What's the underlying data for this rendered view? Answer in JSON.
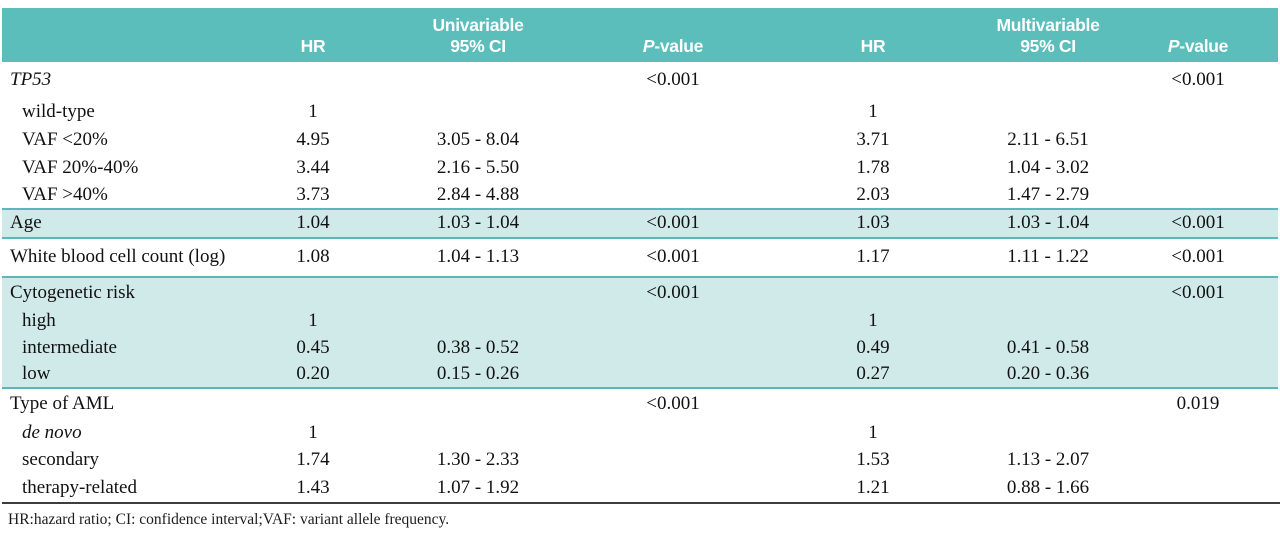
{
  "colors": {
    "header_teal": "#5bbeba",
    "row_shade": "#cfeae9",
    "separator_teal": "#57bab6",
    "bottom_rule": "#3d3d3d"
  },
  "table": {
    "header": {
      "group_univariable": "Univariable",
      "group_multivariable": "Multivariable",
      "col_hr": "HR",
      "col_ci": "95% CI",
      "col_p_italic": "P",
      "col_p_rest": "-value"
    },
    "rows": [
      {
        "label": "TP53",
        "uni_hr": "",
        "uni_ci": "",
        "uni_p": "<0.001",
        "multi_hr": "",
        "multi_ci": "",
        "multi_p": "<0.001"
      },
      {
        "label": "wild-type",
        "uni_hr": "1",
        "uni_ci": "",
        "uni_p": "",
        "multi_hr": "1",
        "multi_ci": "",
        "multi_p": ""
      },
      {
        "label": "VAF <20%",
        "uni_hr": "4.95",
        "uni_ci": "3.05 - 8.04",
        "uni_p": "",
        "multi_hr": "3.71",
        "multi_ci": "2.11 - 6.51",
        "multi_p": ""
      },
      {
        "label": "VAF 20%-40%",
        "uni_hr": "3.44",
        "uni_ci": "2.16 - 5.50",
        "uni_p": "",
        "multi_hr": "1.78",
        "multi_ci": "1.04 - 3.02",
        "multi_p": ""
      },
      {
        "label": "VAF >40%",
        "uni_hr": "3.73",
        "uni_ci": "2.84 - 4.88",
        "uni_p": "",
        "multi_hr": "2.03",
        "multi_ci": "1.47 - 2.79",
        "multi_p": ""
      },
      {
        "label": "Age",
        "uni_hr": "1.04",
        "uni_ci": "1.03 - 1.04",
        "uni_p": "<0.001",
        "multi_hr": "1.03",
        "multi_ci": "1.03 - 1.04",
        "multi_p": "<0.001"
      },
      {
        "label": "White blood cell count (log)",
        "uni_hr": "1.08",
        "uni_ci": "1.04 - 1.13",
        "uni_p": "<0.001",
        "multi_hr": "1.17",
        "multi_ci": "1.11 - 1.22",
        "multi_p": "<0.001"
      },
      {
        "label": "Cytogenetic risk",
        "uni_hr": "",
        "uni_ci": "",
        "uni_p": "<0.001",
        "multi_hr": "",
        "multi_ci": "",
        "multi_p": "<0.001"
      },
      {
        "label": "high",
        "uni_hr": "1",
        "uni_ci": "",
        "uni_p": "",
        "multi_hr": "1",
        "multi_ci": "",
        "multi_p": ""
      },
      {
        "label": "intermediate",
        "uni_hr": "0.45",
        "uni_ci": "0.38 - 0.52",
        "uni_p": "",
        "multi_hr": "0.49",
        "multi_ci": "0.41 - 0.58",
        "multi_p": ""
      },
      {
        "label": "low",
        "uni_hr": "0.20",
        "uni_ci": "0.15 - 0.26",
        "uni_p": "",
        "multi_hr": "0.27",
        "multi_ci": "0.20 - 0.36",
        "multi_p": ""
      },
      {
        "label": "Type of AML",
        "uni_hr": "",
        "uni_ci": "",
        "uni_p": "<0.001",
        "multi_hr": "",
        "multi_ci": "",
        "multi_p": "0.019"
      },
      {
        "label": "de novo",
        "uni_hr": "1",
        "uni_ci": "",
        "uni_p": "",
        "multi_hr": "1",
        "multi_ci": "",
        "multi_p": ""
      },
      {
        "label": "secondary",
        "uni_hr": "1.74",
        "uni_ci": "1.30 - 2.33",
        "uni_p": "",
        "multi_hr": "1.53",
        "multi_ci": "1.13 - 2.07",
        "multi_p": ""
      },
      {
        "label": "therapy-related",
        "uni_hr": "1.43",
        "uni_ci": "1.07 - 1.92",
        "uni_p": "",
        "multi_hr": "1.21",
        "multi_ci": "0.88 - 1.66",
        "multi_p": ""
      }
    ],
    "footnote": "HR:hazard ratio; CI: confidence interval;VAF: variant allele frequency."
  }
}
